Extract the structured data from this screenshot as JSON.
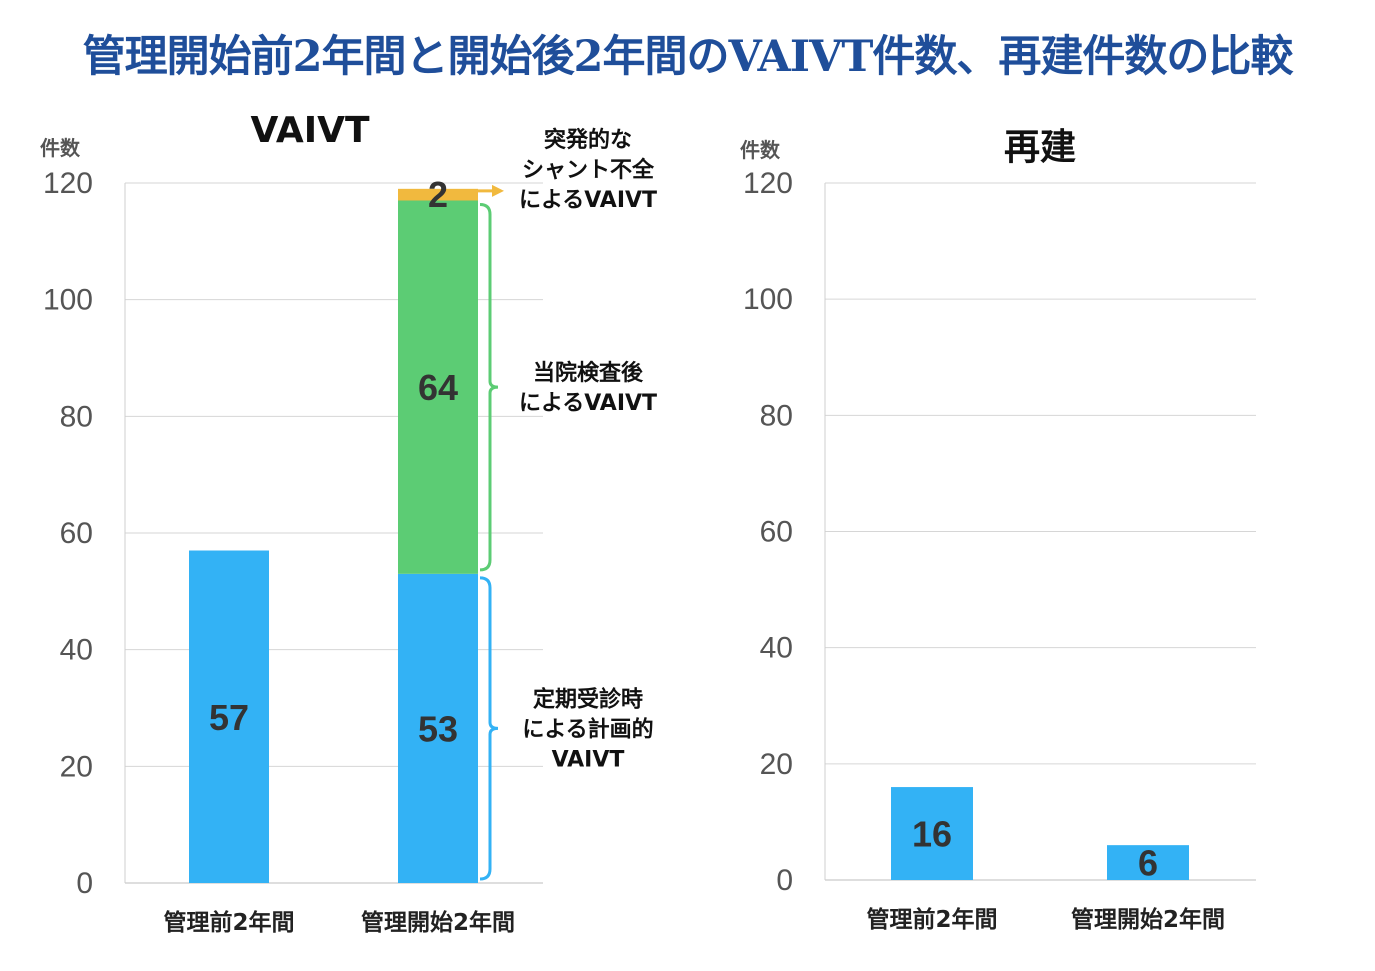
{
  "title": "管理開始前2年間と開始後2年間のVAIVT件数、再建件数の比較",
  "chart_data": [
    {
      "type": "bar",
      "stacked": true,
      "title": "VAIVT",
      "ylabel": "件数",
      "ylim": [
        0,
        120
      ],
      "yticks": [
        0,
        20,
        40,
        60,
        80,
        100,
        120
      ],
      "categories": [
        "管理前2年間",
        "管理開始2年間"
      ],
      "series": [
        {
          "color": "#33b2f5",
          "values": [
            57,
            53
          ]
        },
        {
          "color": "#5ccc74",
          "values": [
            null,
            64
          ]
        },
        {
          "color": "#f1b93e",
          "values": [
            null,
            2
          ]
        }
      ],
      "annotations": [
        {
          "text": "突発的な\nシャント不全\nによるVAIVT",
          "segment": 2,
          "color": "#f1b93e"
        },
        {
          "text": "当院検査後\nによるVAIVT",
          "segment": 1,
          "color": "#5ccc74"
        },
        {
          "text": "定期受診時\nによる計画的\nVAIVT",
          "segment": 0,
          "color": "#33b2f5"
        }
      ],
      "grid": true,
      "legend": "none"
    },
    {
      "type": "bar",
      "title": "再建",
      "ylabel": "件数",
      "ylim": [
        0,
        120
      ],
      "yticks": [
        0,
        20,
        40,
        60,
        80,
        100,
        120
      ],
      "categories": [
        "管理前2年間",
        "管理開始2年間"
      ],
      "series": [
        {
          "color": "#33b2f5",
          "values": [
            16,
            6
          ]
        }
      ],
      "grid": true,
      "legend": "none"
    }
  ]
}
